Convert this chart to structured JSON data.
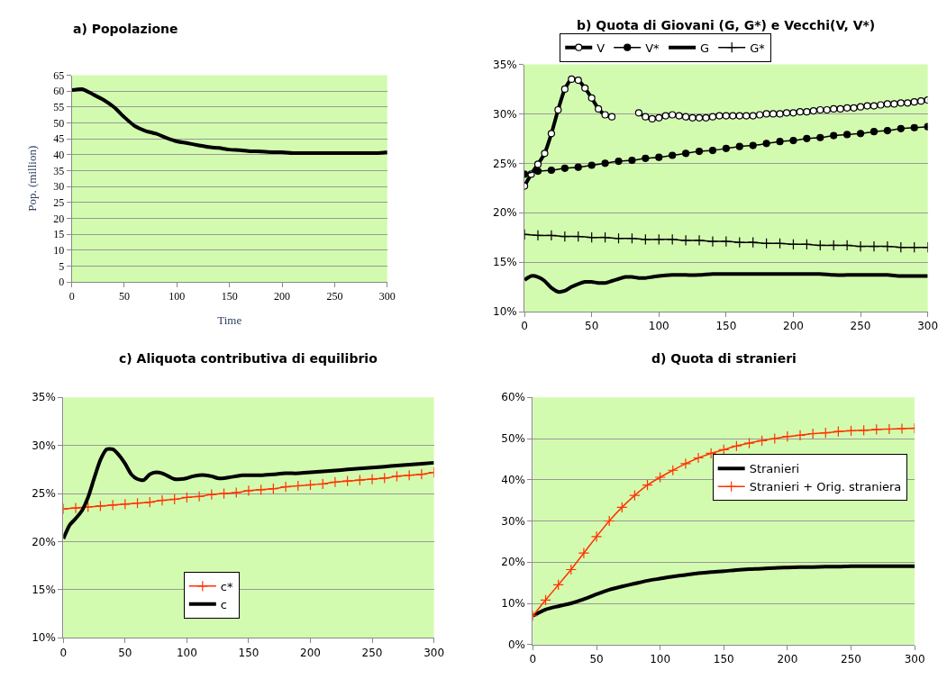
{
  "chart_data": [
    {
      "type": "line",
      "title": "a) Popolazione",
      "xlabel": "Time",
      "ylabel": "Pop. (million)",
      "xlim": [
        0,
        300
      ],
      "xticks": [
        0,
        50,
        100,
        150,
        200,
        250,
        300
      ],
      "ylim": [
        0,
        65
      ],
      "yticks": [
        0,
        5,
        10,
        15,
        20,
        25,
        30,
        35,
        40,
        45,
        50,
        55,
        60,
        65
      ],
      "grid": "y",
      "legend": false,
      "series": [
        {
          "color": "#000000",
          "marker": "none",
          "x": [
            0,
            10,
            20,
            30,
            40,
            50,
            60,
            70,
            80,
            90,
            100,
            110,
            120,
            130,
            140,
            150,
            160,
            170,
            180,
            190,
            200,
            210,
            220,
            230,
            240,
            250,
            260,
            270,
            280,
            290,
            300
          ],
          "values": [
            60.3,
            60.6,
            59,
            57.3,
            55,
            51.8,
            49,
            47.5,
            46.6,
            45.3,
            44.2,
            43.6,
            43,
            42.4,
            42.1,
            41.6,
            41.4,
            41.1,
            41,
            40.8,
            40.8,
            40.5,
            40.5,
            40.5,
            40.5,
            40.5,
            40.5,
            40.5,
            40.5,
            40.5,
            40.8
          ]
        }
      ]
    },
    {
      "type": "line",
      "title": "b) Quota di Giovani (G, G*) e Vecchi(V, V*)",
      "xlim": [
        0,
        300
      ],
      "xticks": [
        0,
        50,
        100,
        150,
        200,
        250,
        300
      ],
      "ylim": [
        10,
        35
      ],
      "yticks": [
        {
          "value": 10,
          "label": "10%"
        },
        {
          "value": 15,
          "label": "15%"
        },
        {
          "value": 20,
          "label": "20%"
        },
        {
          "value": 25,
          "label": "25%"
        },
        {
          "value": 30,
          "label": "30%"
        },
        {
          "value": 35,
          "label": "35%"
        }
      ],
      "grid": "y",
      "legend": "top",
      "series": [
        {
          "name": "V",
          "color": "#000000",
          "marker": "circle",
          "x": [
            0,
            5,
            10,
            15,
            20,
            25,
            30,
            35,
            40,
            45,
            50,
            55,
            60,
            65,
            70,
            75,
            80,
            85,
            90,
            95,
            100,
            105,
            110,
            115,
            120,
            125,
            130,
            135,
            140,
            145,
            150,
            155,
            160,
            165,
            170,
            175,
            180,
            185,
            190,
            195,
            200,
            205,
            210,
            215,
            220,
            225,
            230,
            235,
            240,
            245,
            250,
            255,
            260,
            265,
            270,
            275,
            280,
            285,
            290,
            295,
            300
          ],
          "values": [
            22.7,
            23.9,
            24.9,
            26,
            28,
            30.4,
            32.5,
            33.5,
            33.4,
            32.6,
            31.6,
            30.5,
            29.9,
            29.7,
            null,
            null,
            null,
            30.1,
            29.7,
            29.5,
            29.6,
            29.8,
            29.9,
            29.8,
            29.7,
            29.6,
            29.6,
            29.6,
            29.7,
            29.8,
            29.8,
            29.8,
            29.8,
            29.8,
            29.8,
            29.9,
            30,
            30,
            30,
            30.1,
            30.1,
            30.2,
            30.2,
            30.3,
            30.4,
            30.4,
            30.5,
            30.5,
            30.6,
            30.6,
            30.7,
            30.8,
            30.8,
            30.9,
            31,
            31,
            31.1,
            31.1,
            31.2,
            31.3,
            31.4
          ]
        },
        {
          "name": "V*",
          "color": "#000000",
          "marker": "circle",
          "x": [
            0,
            10,
            20,
            30,
            40,
            50,
            60,
            70,
            80,
            90,
            100,
            110,
            120,
            130,
            140,
            150,
            160,
            170,
            180,
            190,
            200,
            210,
            220,
            230,
            240,
            250,
            260,
            270,
            280,
            290,
            300
          ],
          "values": [
            23.9,
            24.2,
            24.3,
            24.5,
            24.6,
            24.8,
            25,
            25.2,
            25.3,
            25.5,
            25.6,
            25.8,
            26,
            26.2,
            26.3,
            26.5,
            26.7,
            26.8,
            27,
            27.2,
            27.3,
            27.5,
            27.6,
            27.8,
            27.9,
            28,
            28.2,
            28.3,
            28.5,
            28.6,
            28.7
          ]
        },
        {
          "name": "G",
          "color": "#000000",
          "marker": "none",
          "x": [
            0,
            5,
            10,
            15,
            20,
            25,
            30,
            35,
            40,
            45,
            50,
            55,
            60,
            65,
            70,
            75,
            80,
            85,
            90,
            95,
            100,
            110,
            120,
            130,
            140,
            150,
            160,
            170,
            180,
            190,
            200,
            210,
            220,
            230,
            240,
            250,
            260,
            270,
            280,
            290,
            300
          ],
          "values": [
            13.2,
            13.6,
            13.5,
            13.1,
            12.4,
            12,
            12.1,
            12.5,
            12.8,
            13,
            13,
            12.9,
            12.9,
            13.1,
            13.3,
            13.5,
            13.5,
            13.4,
            13.4,
            13.5,
            13.6,
            13.7,
            13.7,
            13.7,
            13.8,
            13.8,
            13.8,
            13.8,
            13.8,
            13.8,
            13.8,
            13.8,
            13.8,
            13.7,
            13.7,
            13.7,
            13.7,
            13.7,
            13.6,
            13.6,
            13.6
          ]
        },
        {
          "name": "G*",
          "color": "#000000",
          "marker": "cross",
          "x": [
            0,
            10,
            20,
            30,
            40,
            50,
            60,
            70,
            80,
            90,
            100,
            110,
            120,
            130,
            140,
            150,
            160,
            170,
            180,
            190,
            200,
            210,
            220,
            230,
            240,
            250,
            260,
            270,
            280,
            290,
            300
          ],
          "values": [
            17.8,
            17.7,
            17.7,
            17.6,
            17.6,
            17.5,
            17.5,
            17.4,
            17.4,
            17.3,
            17.3,
            17.3,
            17.2,
            17.2,
            17.1,
            17.1,
            17,
            17,
            16.9,
            16.9,
            16.8,
            16.8,
            16.7,
            16.7,
            16.7,
            16.6,
            16.6,
            16.6,
            16.5,
            16.5,
            16.5
          ]
        }
      ]
    },
    {
      "type": "line",
      "title": "c) Aliquota contributiva di equilibrio",
      "xlim": [
        0,
        300
      ],
      "xticks": [
        0,
        50,
        100,
        150,
        200,
        250,
        300
      ],
      "ylim": [
        10,
        35
      ],
      "yticks": [
        {
          "value": 10,
          "label": "10%"
        },
        {
          "value": 15,
          "label": "15%"
        },
        {
          "value": 20,
          "label": "20%"
        },
        {
          "value": 25,
          "label": "25%"
        },
        {
          "value": 30,
          "label": "30%"
        },
        {
          "value": 35,
          "label": "35%"
        }
      ],
      "grid": "y",
      "legend": "bottom",
      "series": [
        {
          "name": "c*",
          "color": "#ff3300",
          "marker": "cross",
          "x": [
            0,
            10,
            20,
            30,
            40,
            50,
            60,
            70,
            80,
            90,
            100,
            110,
            120,
            130,
            140,
            150,
            160,
            170,
            180,
            190,
            200,
            210,
            220,
            230,
            240,
            250,
            260,
            270,
            280,
            290,
            300
          ],
          "values": [
            23.4,
            23.5,
            23.6,
            23.7,
            23.8,
            23.9,
            24,
            24.1,
            24.3,
            24.4,
            24.6,
            24.7,
            24.9,
            25,
            25.1,
            25.3,
            25.4,
            25.5,
            25.7,
            25.8,
            25.9,
            26,
            26.2,
            26.3,
            26.4,
            26.5,
            26.6,
            26.8,
            26.9,
            27,
            27.2
          ]
        },
        {
          "name": "c",
          "color": "#000000",
          "marker": "none",
          "x": [
            0,
            5,
            10,
            15,
            20,
            25,
            30,
            35,
            40,
            45,
            50,
            55,
            60,
            65,
            70,
            75,
            80,
            85,
            90,
            95,
            100,
            105,
            110,
            115,
            120,
            125,
            130,
            135,
            140,
            145,
            150,
            160,
            170,
            180,
            190,
            200,
            210,
            220,
            230,
            240,
            250,
            260,
            270,
            280,
            290,
            300
          ],
          "values": [
            20.3,
            21.7,
            22.4,
            23.2,
            24.6,
            26.6,
            28.5,
            29.6,
            29.6,
            29,
            28.1,
            27,
            26.5,
            26.4,
            27,
            27.2,
            27.1,
            26.8,
            26.5,
            26.5,
            26.6,
            26.8,
            26.9,
            26.9,
            26.8,
            26.6,
            26.6,
            26.7,
            26.8,
            26.9,
            26.9,
            26.9,
            27,
            27.1,
            27.1,
            27.2,
            27.3,
            27.4,
            27.5,
            27.6,
            27.7,
            27.8,
            27.9,
            28,
            28.1,
            28.2
          ]
        }
      ]
    },
    {
      "type": "line",
      "title": "d) Quota di stranieri",
      "xlim": [
        0,
        300
      ],
      "xticks": [
        0,
        50,
        100,
        150,
        200,
        250,
        300
      ],
      "ylim": [
        0,
        60
      ],
      "yticks": [
        {
          "value": 0,
          "label": "0%"
        },
        {
          "value": 10,
          "label": "10%"
        },
        {
          "value": 20,
          "label": "20%"
        },
        {
          "value": 30,
          "label": "30%"
        },
        {
          "value": 40,
          "label": "40%"
        },
        {
          "value": 50,
          "label": "50%"
        },
        {
          "value": 60,
          "label": "60%"
        }
      ],
      "grid": "y",
      "legend": "right",
      "series": [
        {
          "name": "Stranieri",
          "color": "#000000",
          "marker": "none",
          "x": [
            0,
            10,
            20,
            30,
            40,
            50,
            60,
            70,
            80,
            90,
            100,
            110,
            120,
            130,
            140,
            150,
            160,
            170,
            180,
            190,
            200,
            210,
            220,
            230,
            240,
            250,
            260,
            270,
            280,
            290,
            300
          ],
          "values": [
            7,
            8.5,
            9.3,
            10,
            11,
            12.2,
            13.3,
            14.1,
            14.8,
            15.5,
            16,
            16.5,
            16.9,
            17.3,
            17.6,
            17.8,
            18.1,
            18.3,
            18.4,
            18.6,
            18.7,
            18.8,
            18.8,
            18.9,
            18.9,
            19,
            19,
            19,
            19,
            19,
            19
          ]
        },
        {
          "name": "Stranieri + Orig. straniera",
          "color": "#ff3300",
          "marker": "cross",
          "x": [
            0,
            10,
            20,
            30,
            40,
            50,
            60,
            70,
            80,
            90,
            100,
            110,
            120,
            130,
            140,
            150,
            160,
            170,
            180,
            190,
            200,
            210,
            220,
            230,
            240,
            250,
            260,
            270,
            280,
            290,
            300
          ],
          "values": [
            7,
            10.8,
            14.5,
            18.2,
            22.2,
            26.2,
            30,
            33.3,
            36.2,
            38.7,
            40.6,
            42.3,
            43.9,
            45.3,
            46.4,
            47.3,
            48.2,
            48.9,
            49.5,
            50,
            50.5,
            50.8,
            51.2,
            51.4,
            51.7,
            51.9,
            52,
            52.2,
            52.3,
            52.4,
            52.5
          ]
        }
      ]
    }
  ]
}
